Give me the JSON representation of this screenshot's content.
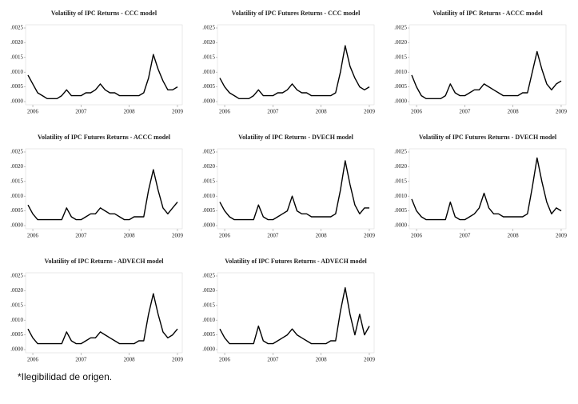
{
  "chart_data": [
    {
      "type": "line",
      "title": "Volatility of IPC Returns - CCC model",
      "color": "#000000",
      "x": [
        2005.9,
        2006.0,
        2006.1,
        2006.2,
        2006.3,
        2006.4,
        2006.5,
        2006.6,
        2006.7,
        2006.8,
        2006.9,
        2007.0,
        2007.1,
        2007.2,
        2007.3,
        2007.4,
        2007.5,
        2007.6,
        2007.7,
        2007.8,
        2007.9,
        2008.0,
        2008.1,
        2008.2,
        2008.3,
        2008.4,
        2008.5,
        2008.6,
        2008.7,
        2008.8,
        2008.9,
        2009.0
      ],
      "values": [
        0.0009,
        0.0006,
        0.0003,
        0.0002,
        0.0001,
        0.0001,
        0.0001,
        0.0002,
        0.0004,
        0.0002,
        0.0002,
        0.0002,
        0.0003,
        0.0003,
        0.0004,
        0.0006,
        0.0004,
        0.0003,
        0.0003,
        0.0002,
        0.0002,
        0.0002,
        0.0002,
        0.0002,
        0.0003,
        0.0008,
        0.0016,
        0.0011,
        0.0007,
        0.0004,
        0.0004,
        0.0005
      ],
      "xlim": [
        2005.85,
        2009.1
      ],
      "xticks": [
        2006,
        2007,
        2008,
        2009
      ],
      "ylim": [
        0,
        0.0025
      ],
      "yticks": [
        {
          "value": 0,
          "label": ".0000"
        },
        {
          "value": 0.0005,
          "label": ".0005"
        },
        {
          "value": 0.001,
          "label": ".0010"
        },
        {
          "value": 0.0015,
          "label": ".0015"
        },
        {
          "value": 0.002,
          "label": ".0020"
        },
        {
          "value": 0.0025,
          "label": ".0025"
        }
      ]
    },
    {
      "type": "line",
      "title": "Volatility of IPC Futures Returns - CCC model",
      "color": "#000000",
      "x": [
        2005.9,
        2006.0,
        2006.1,
        2006.2,
        2006.3,
        2006.4,
        2006.5,
        2006.6,
        2006.7,
        2006.8,
        2006.9,
        2007.0,
        2007.1,
        2007.2,
        2007.3,
        2007.4,
        2007.5,
        2007.6,
        2007.7,
        2007.8,
        2007.9,
        2008.0,
        2008.1,
        2008.2,
        2008.3,
        2008.4,
        2008.5,
        2008.6,
        2008.7,
        2008.8,
        2008.9,
        2009.0
      ],
      "values": [
        0.0008,
        0.0005,
        0.0003,
        0.0002,
        0.0001,
        0.0001,
        0.0001,
        0.0002,
        0.0004,
        0.0002,
        0.0002,
        0.0002,
        0.0003,
        0.0003,
        0.0004,
        0.0006,
        0.0004,
        0.0003,
        0.0003,
        0.0002,
        0.0002,
        0.0002,
        0.0002,
        0.0002,
        0.0003,
        0.001,
        0.0019,
        0.0012,
        0.0008,
        0.0005,
        0.0004,
        0.0005
      ],
      "xlim": [
        2005.85,
        2009.1
      ],
      "xticks": [
        2006,
        2007,
        2008,
        2009
      ],
      "ylim": [
        0,
        0.0025
      ],
      "yticks": [
        {
          "value": 0,
          "label": ".0000"
        },
        {
          "value": 0.0005,
          "label": ".0005"
        },
        {
          "value": 0.001,
          "label": ".0010"
        },
        {
          "value": 0.0015,
          "label": ".0015"
        },
        {
          "value": 0.002,
          "label": ".0020"
        },
        {
          "value": 0.0025,
          "label": ".0025"
        }
      ]
    },
    {
      "type": "line",
      "title": "Volatility of IPC Returns - ACCC model",
      "color": "#000000",
      "x": [
        2005.9,
        2006.0,
        2006.1,
        2006.2,
        2006.3,
        2006.4,
        2006.5,
        2006.6,
        2006.7,
        2006.8,
        2006.9,
        2007.0,
        2007.1,
        2007.2,
        2007.3,
        2007.4,
        2007.5,
        2007.6,
        2007.7,
        2007.8,
        2007.9,
        2008.0,
        2008.1,
        2008.2,
        2008.3,
        2008.4,
        2008.5,
        2008.6,
        2008.7,
        2008.8,
        2008.9,
        2009.0
      ],
      "values": [
        0.0009,
        0.0005,
        0.0002,
        0.0001,
        0.0001,
        0.0001,
        0.0001,
        0.0002,
        0.0006,
        0.0003,
        0.0002,
        0.0002,
        0.0003,
        0.0004,
        0.0004,
        0.0006,
        0.0005,
        0.0004,
        0.0003,
        0.0002,
        0.0002,
        0.0002,
        0.0002,
        0.0003,
        0.0003,
        0.001,
        0.0017,
        0.0011,
        0.0006,
        0.0004,
        0.0006,
        0.0007
      ],
      "xlim": [
        2005.85,
        2009.1
      ],
      "xticks": [
        2006,
        2007,
        2008,
        2009
      ],
      "ylim": [
        0,
        0.0025
      ],
      "yticks": [
        {
          "value": 0,
          "label": ".0000"
        },
        {
          "value": 0.0005,
          "label": ".0005"
        },
        {
          "value": 0.001,
          "label": ".0010"
        },
        {
          "value": 0.0015,
          "label": ".0015"
        },
        {
          "value": 0.002,
          "label": ".0020"
        },
        {
          "value": 0.0025,
          "label": ".0025"
        }
      ]
    },
    {
      "type": "line",
      "title": "Volatility of IPC Futures Returns - ACCC model",
      "color": "#000000",
      "x": [
        2005.9,
        2006.0,
        2006.1,
        2006.2,
        2006.3,
        2006.4,
        2006.5,
        2006.6,
        2006.7,
        2006.8,
        2006.9,
        2007.0,
        2007.1,
        2007.2,
        2007.3,
        2007.4,
        2007.5,
        2007.6,
        2007.7,
        2007.8,
        2007.9,
        2008.0,
        2008.1,
        2008.2,
        2008.3,
        2008.4,
        2008.5,
        2008.6,
        2008.7,
        2008.8,
        2008.9,
        2009.0
      ],
      "values": [
        0.0007,
        0.0004,
        0.0002,
        0.0002,
        0.0002,
        0.0002,
        0.0002,
        0.0002,
        0.0006,
        0.0003,
        0.0002,
        0.0002,
        0.0003,
        0.0004,
        0.0004,
        0.0006,
        0.0005,
        0.0004,
        0.0004,
        0.0003,
        0.0002,
        0.0002,
        0.0003,
        0.0003,
        0.0003,
        0.0012,
        0.0019,
        0.0012,
        0.0006,
        0.0004,
        0.0006,
        0.0008
      ],
      "xlim": [
        2005.85,
        2009.1
      ],
      "xticks": [
        2006,
        2007,
        2008,
        2009
      ],
      "ylim": [
        0,
        0.0025
      ],
      "yticks": [
        {
          "value": 0,
          "label": ".0000"
        },
        {
          "value": 0.0005,
          "label": ".0005"
        },
        {
          "value": 0.001,
          "label": ".0010"
        },
        {
          "value": 0.0015,
          "label": ".0015"
        },
        {
          "value": 0.002,
          "label": ".0020"
        },
        {
          "value": 0.0025,
          "label": ".0025"
        }
      ]
    },
    {
      "type": "line",
      "title": "Volatility of IPC Returns - DVECH model",
      "color": "#000000",
      "x": [
        2005.9,
        2006.0,
        2006.1,
        2006.2,
        2006.3,
        2006.4,
        2006.5,
        2006.6,
        2006.7,
        2006.8,
        2006.9,
        2007.0,
        2007.1,
        2007.2,
        2007.3,
        2007.4,
        2007.5,
        2007.6,
        2007.7,
        2007.8,
        2007.9,
        2008.0,
        2008.1,
        2008.2,
        2008.3,
        2008.4,
        2008.5,
        2008.6,
        2008.7,
        2008.8,
        2008.9,
        2009.0
      ],
      "values": [
        0.0008,
        0.0005,
        0.0003,
        0.0002,
        0.0002,
        0.0002,
        0.0002,
        0.0002,
        0.0007,
        0.0003,
        0.0002,
        0.0002,
        0.0003,
        0.0004,
        0.0005,
        0.001,
        0.0005,
        0.0004,
        0.0004,
        0.0003,
        0.0003,
        0.0003,
        0.0003,
        0.0003,
        0.0004,
        0.0012,
        0.0022,
        0.0014,
        0.0007,
        0.0004,
        0.0006,
        0.0006
      ],
      "xlim": [
        2005.85,
        2009.1
      ],
      "xticks": [
        2006,
        2007,
        2008,
        2009
      ],
      "ylim": [
        0,
        0.0025
      ],
      "yticks": [
        {
          "value": 0,
          "label": ".0000"
        },
        {
          "value": 0.0005,
          "label": ".0005"
        },
        {
          "value": 0.001,
          "label": ".0010"
        },
        {
          "value": 0.0015,
          "label": ".0015"
        },
        {
          "value": 0.002,
          "label": ".0020"
        },
        {
          "value": 0.0025,
          "label": ".0025"
        }
      ]
    },
    {
      "type": "line",
      "title": "Volatility of IPC Futures Returns - DVECH model",
      "color": "#000000",
      "x": [
        2005.9,
        2006.0,
        2006.1,
        2006.2,
        2006.3,
        2006.4,
        2006.5,
        2006.6,
        2006.7,
        2006.8,
        2006.9,
        2007.0,
        2007.1,
        2007.2,
        2007.3,
        2007.4,
        2007.5,
        2007.6,
        2007.7,
        2007.8,
        2007.9,
        2008.0,
        2008.1,
        2008.2,
        2008.3,
        2008.4,
        2008.5,
        2008.6,
        2008.7,
        2008.8,
        2008.9,
        2009.0
      ],
      "values": [
        0.0009,
        0.0005,
        0.0003,
        0.0002,
        0.0002,
        0.0002,
        0.0002,
        0.0002,
        0.0008,
        0.0003,
        0.0002,
        0.0002,
        0.0003,
        0.0004,
        0.0006,
        0.0011,
        0.0006,
        0.0004,
        0.0004,
        0.0003,
        0.0003,
        0.0003,
        0.0003,
        0.0003,
        0.0004,
        0.0013,
        0.0023,
        0.0015,
        0.0008,
        0.0004,
        0.0006,
        0.0005
      ],
      "xlim": [
        2005.85,
        2009.1
      ],
      "xticks": [
        2006,
        2007,
        2008,
        2009
      ],
      "ylim": [
        0,
        0.0025
      ],
      "yticks": [
        {
          "value": 0,
          "label": ".0000"
        },
        {
          "value": 0.0005,
          "label": ".0005"
        },
        {
          "value": 0.001,
          "label": ".0010"
        },
        {
          "value": 0.0015,
          "label": ".0015"
        },
        {
          "value": 0.002,
          "label": ".0020"
        },
        {
          "value": 0.0025,
          "label": ".0025"
        }
      ]
    },
    {
      "type": "line",
      "title": "Volatility of IPC Returns - ADVECH model",
      "color": "#000000",
      "x": [
        2005.9,
        2006.0,
        2006.1,
        2006.2,
        2006.3,
        2006.4,
        2006.5,
        2006.6,
        2006.7,
        2006.8,
        2006.9,
        2007.0,
        2007.1,
        2007.2,
        2007.3,
        2007.4,
        2007.5,
        2007.6,
        2007.7,
        2007.8,
        2007.9,
        2008.0,
        2008.1,
        2008.2,
        2008.3,
        2008.4,
        2008.5,
        2008.6,
        2008.7,
        2008.8,
        2008.9,
        2009.0
      ],
      "values": [
        0.0007,
        0.0004,
        0.0002,
        0.0002,
        0.0002,
        0.0002,
        0.0002,
        0.0002,
        0.0006,
        0.0003,
        0.0002,
        0.0002,
        0.0003,
        0.0004,
        0.0004,
        0.0006,
        0.0005,
        0.0004,
        0.0003,
        0.0002,
        0.0002,
        0.0002,
        0.0002,
        0.0003,
        0.0003,
        0.0012,
        0.0019,
        0.0012,
        0.0006,
        0.0004,
        0.0005,
        0.0007
      ],
      "xlim": [
        2005.85,
        2009.1
      ],
      "xticks": [
        2006,
        2007,
        2008,
        2009
      ],
      "ylim": [
        0,
        0.0025
      ],
      "yticks": [
        {
          "value": 0,
          "label": ".0000"
        },
        {
          "value": 0.0005,
          "label": ".0005"
        },
        {
          "value": 0.001,
          "label": ".0010"
        },
        {
          "value": 0.0015,
          "label": ".0015"
        },
        {
          "value": 0.002,
          "label": ".0020"
        },
        {
          "value": 0.0025,
          "label": ".0025"
        }
      ]
    },
    {
      "type": "line",
      "title": "Volatility of IPC Futures Returns - ADVECH model",
      "color": "#000000",
      "x": [
        2005.9,
        2006.0,
        2006.1,
        2006.2,
        2006.3,
        2006.4,
        2006.5,
        2006.6,
        2006.7,
        2006.8,
        2006.9,
        2007.0,
        2007.1,
        2007.2,
        2007.3,
        2007.4,
        2007.5,
        2007.6,
        2007.7,
        2007.8,
        2007.9,
        2008.0,
        2008.1,
        2008.2,
        2008.3,
        2008.4,
        2008.5,
        2008.6,
        2008.7,
        2008.8,
        2008.9,
        2009.0
      ],
      "values": [
        0.0007,
        0.0004,
        0.0002,
        0.0002,
        0.0002,
        0.0002,
        0.0002,
        0.0002,
        0.0008,
        0.0003,
        0.0002,
        0.0002,
        0.0003,
        0.0004,
        0.0005,
        0.0007,
        0.0005,
        0.0004,
        0.0003,
        0.0002,
        0.0002,
        0.0002,
        0.0002,
        0.0003,
        0.0003,
        0.0013,
        0.0021,
        0.0012,
        0.0005,
        0.0012,
        0.0005,
        0.0008
      ],
      "xlim": [
        2005.85,
        2009.1
      ],
      "xticks": [
        2006,
        2007,
        2008,
        2009
      ],
      "ylim": [
        0,
        0.0025
      ],
      "yticks": [
        {
          "value": 0,
          "label": ".0000"
        },
        {
          "value": 0.0005,
          "label": ".0005"
        },
        {
          "value": 0.001,
          "label": ".0010"
        },
        {
          "value": 0.0015,
          "label": ".0015"
        },
        {
          "value": 0.002,
          "label": ".0020"
        },
        {
          "value": 0.0025,
          "label": ".0025"
        }
      ]
    }
  ],
  "footnote": "*Ilegibilidad de origen."
}
